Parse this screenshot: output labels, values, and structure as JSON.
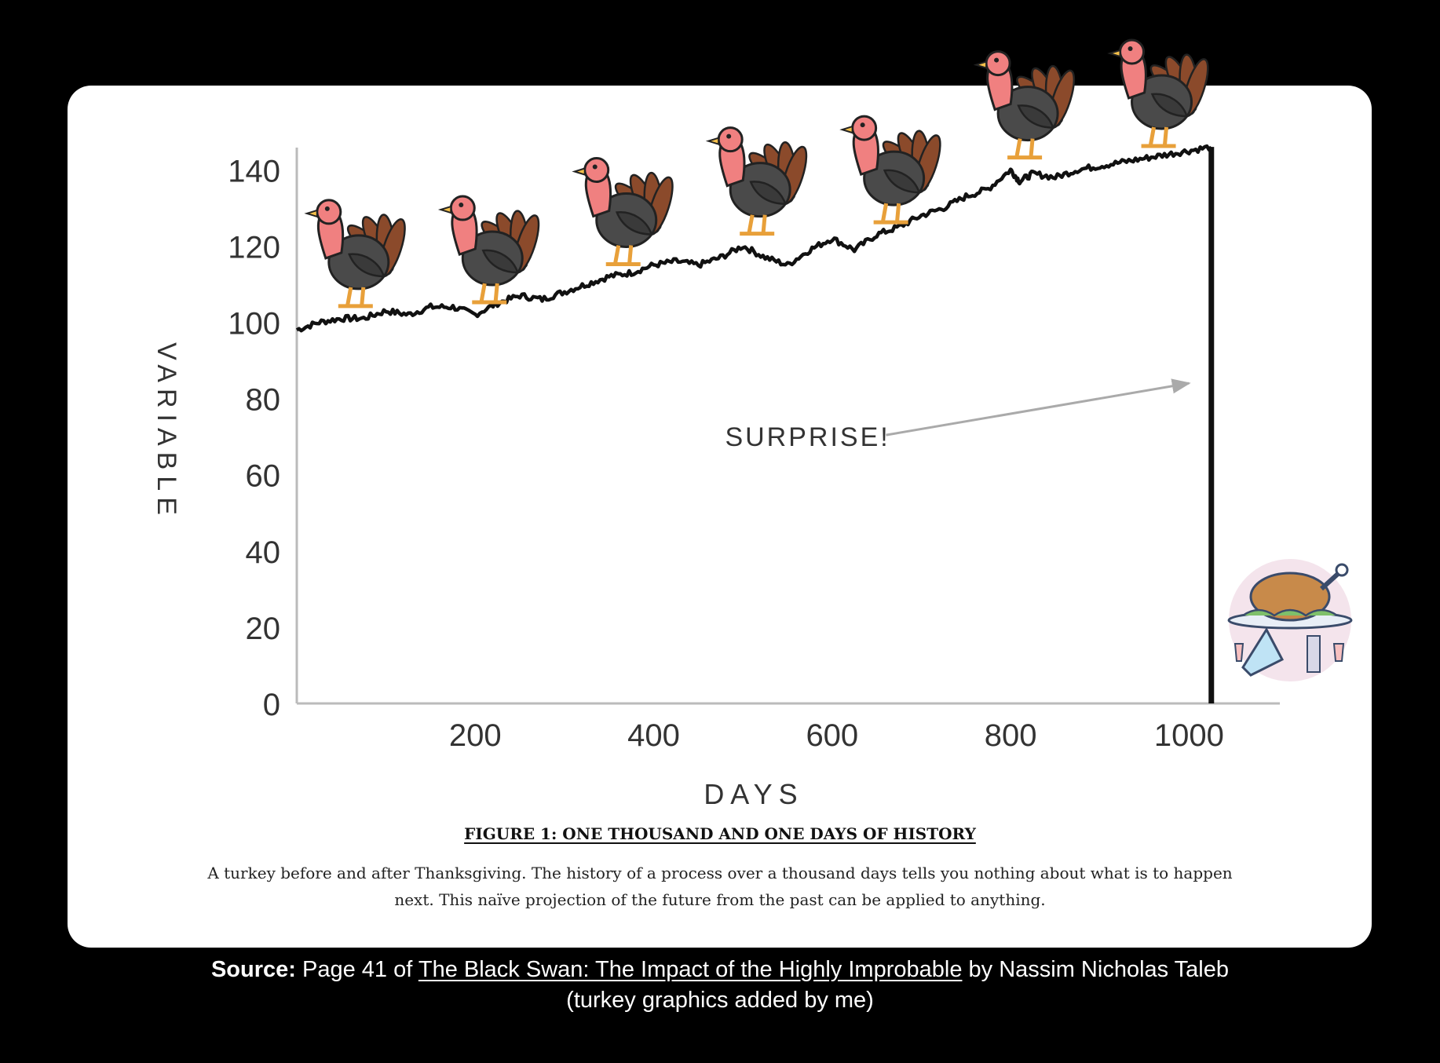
{
  "chart_data": {
    "type": "line",
    "xlabel": "DAYS",
    "ylabel": "VARIABLE",
    "x_ticks": [
      200,
      400,
      600,
      800,
      1000
    ],
    "y_ticks": [
      0,
      20,
      40,
      60,
      80,
      100,
      120,
      140
    ],
    "xlim": [
      0,
      1100
    ],
    "ylim": [
      0,
      145
    ],
    "grid": false,
    "series": [
      {
        "x": [
          0,
          25,
          50,
          75,
          100,
          125,
          150,
          175,
          200,
          225,
          250,
          275,
          300,
          325,
          350,
          375,
          400,
          425,
          450,
          475,
          500,
          525,
          550,
          575,
          600,
          625,
          650,
          675,
          700,
          725,
          750,
          775,
          800,
          810,
          825,
          850,
          875,
          900,
          925,
          950,
          975,
          1000,
          1025
        ],
        "y": [
          98,
          100,
          101,
          101,
          103,
          102,
          104,
          104,
          102,
          105,
          107,
          106,
          108,
          110,
          112,
          113,
          115,
          116,
          115,
          117,
          120,
          117,
          115,
          119,
          122,
          119,
          123,
          125,
          128,
          130,
          133,
          135,
          140,
          137,
          139,
          138,
          140,
          141,
          142,
          143,
          144,
          145,
          146
        ],
        "drop": {
          "x": 1025,
          "from": 146,
          "to": 0
        },
        "color": "#111111"
      }
    ],
    "annotations": [
      {
        "text": "SURPRISE!",
        "x": 480,
        "y": 70,
        "arrow_to": [
          1000,
          84
        ]
      }
    ]
  },
  "figure": {
    "title": "FIGURE 1: ONE THOUSAND AND ONE DAYS OF HISTORY",
    "caption": "A turkey before and after Thanksgiving. The history of a process over a thousand days tells you nothing about what is to happen next. This naïve projection of the future from the past can be applied to anything."
  },
  "source": {
    "label": "Source:",
    "prefix": "Page 41 of",
    "book": "The Black Swan: The Impact of the Highly Improbable",
    "author": "by Nassim Nicholas Taleb",
    "note": "(turkey graphics added by me)"
  },
  "icons": {
    "turkeys": [
      "turkey-icon",
      "turkey-icon",
      "turkey-icon",
      "turkey-icon",
      "turkey-icon",
      "turkey-icon",
      "turkey-icon"
    ],
    "dinner": "roast-turkey-platter-icon"
  },
  "colors": {
    "background": "#000000",
    "card": "#ffffff",
    "line": "#111111",
    "axis": "#bbbbbb",
    "arrow": "#aaaaaa",
    "turkey_head": "#f08080",
    "turkey_body": "#4a4a4a",
    "turkey_tail": "#8b4a2b"
  }
}
